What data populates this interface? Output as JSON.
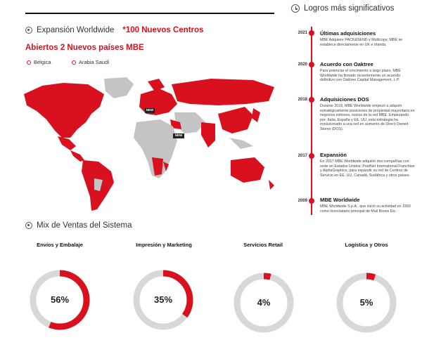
{
  "expansion": {
    "title": "Expansión Worldwide",
    "centers": "*100 Nuevos Centros",
    "new_countries": "Abiertos 2 Nuevos países MBE",
    "pins": [
      {
        "label": "Bélgica"
      },
      {
        "label": "Arabia Saudí"
      }
    ],
    "new_badge": "NEW"
  },
  "achievements": {
    "title": "Logros más significativos",
    "items": [
      {
        "year": "2021",
        "title": "Últimas adquisiciones",
        "body": "MBE Adquiere PACK&SEND y Multicopy; MBE se establece directamente en UK e Irlanda."
      },
      {
        "year": "2020",
        "title": "Acuerdo con Oaktree",
        "body": "Para potenciar el crecimiento a largo plazo, MBE Worldwide ha firmado recientemente un acuerdo definitivo con Oaktree Capital Management, L.P."
      },
      {
        "year": "2018",
        "title": "Adquisiciones DOS",
        "body": "Durante 2018, MBE Worldwide empezó a adquirir estratégicamente posiciones de propiedad mayoritaria en negocios exitosos, socios de la red MBE. Empezando por: Italia, España y EE. UU. esta estrategia ha evolucionado a una red en aumento de Direct Owned Stores (DOS)."
      },
      {
        "year": "2017",
        "title": "Expansión",
        "body": "En 2017 MBE Worldwide adquirió dos compañías con sede en Estados Unidos; PostNet International Franchise y AlphaGraphics, para expandir su red de Centros de Servicio en EE. UU, Canadá, Sudáfrica y otros países."
      },
      {
        "year": "2009",
        "title": "MBE Worldwide",
        "body": "MBE Worldwide S.p.A., que inició su actividad en 1993 como licenciatario principal de Mail Boxes Etc."
      }
    ]
  },
  "mix": {
    "title": "Mix de Ventas del Sistema",
    "items": [
      {
        "label": "Envíos y Embalaje",
        "value_text": "56%",
        "fraction": 0.56
      },
      {
        "label": "Impresión y Marketing",
        "value_text": "35%",
        "fraction": 0.35
      },
      {
        "label": "Servicios Retail",
        "value_text": "4%",
        "fraction": 0.04
      },
      {
        "label": "Logística y Otros",
        "value_text": "5%",
        "fraction": 0.05
      }
    ]
  },
  "colors": {
    "accent": "#d9101d",
    "track": "#d8d8d8",
    "land": "#c4c4c4"
  }
}
